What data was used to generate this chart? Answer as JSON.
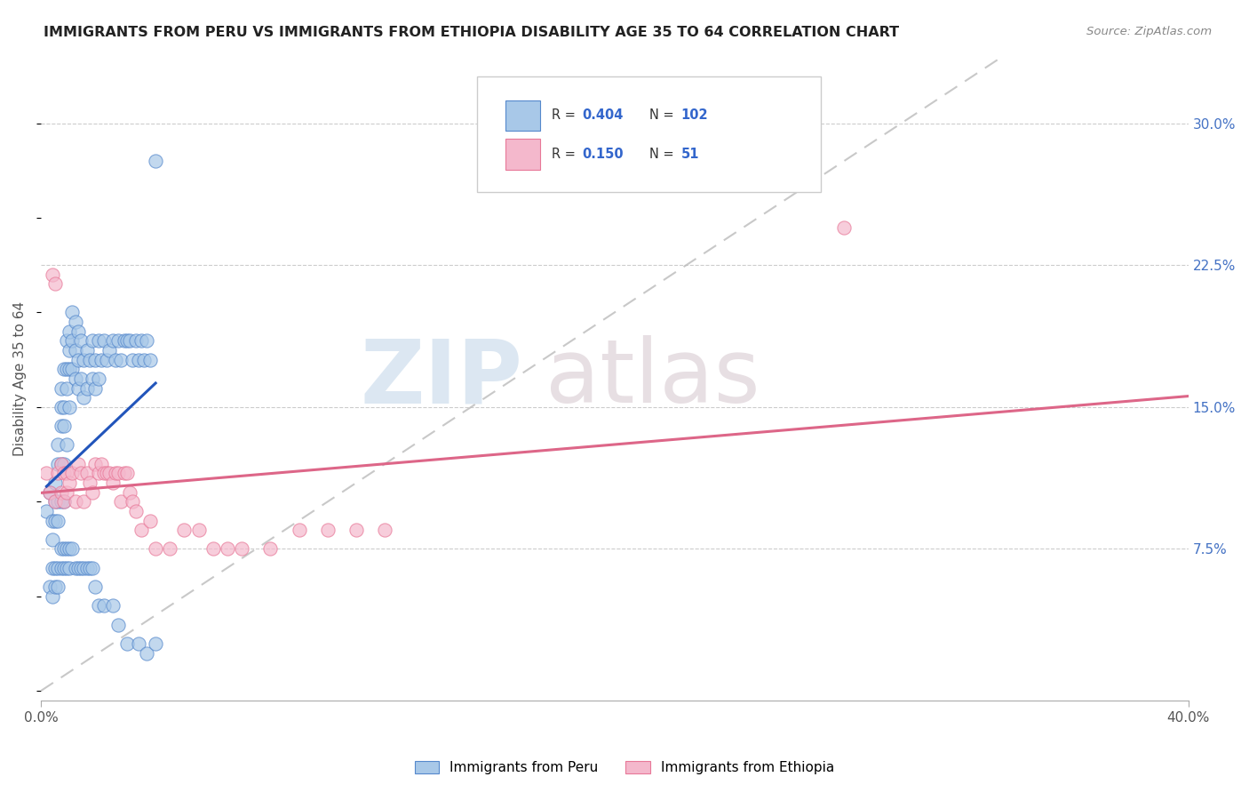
{
  "title": "IMMIGRANTS FROM PERU VS IMMIGRANTS FROM ETHIOPIA DISABILITY AGE 35 TO 64 CORRELATION CHART",
  "source": "Source: ZipAtlas.com",
  "ylabel": "Disability Age 35 to 64",
  "yticks": [
    "7.5%",
    "15.0%",
    "22.5%",
    "30.0%"
  ],
  "ytick_vals": [
    0.075,
    0.15,
    0.225,
    0.3
  ],
  "xlim": [
    0.0,
    0.4
  ],
  "ylim": [
    -0.005,
    0.335
  ],
  "peru_color": "#A8C8E8",
  "ethiopia_color": "#F4B8CC",
  "peru_edge_color": "#5588CC",
  "ethiopia_edge_color": "#E87898",
  "peru_line_color": "#2255BB",
  "ethiopia_line_color": "#DD6688",
  "diagonal_color": "#BBBBBB",
  "watermark_zip": "ZIP",
  "watermark_atlas": "atlas",
  "legend_r1": "0.404",
  "legend_n1": "102",
  "legend_r2": "0.150",
  "legend_n2": "51",
  "peru_scatter_x": [
    0.002,
    0.003,
    0.004,
    0.004,
    0.005,
    0.005,
    0.005,
    0.006,
    0.006,
    0.006,
    0.006,
    0.007,
    0.007,
    0.007,
    0.007,
    0.007,
    0.008,
    0.008,
    0.008,
    0.008,
    0.008,
    0.009,
    0.009,
    0.009,
    0.009,
    0.01,
    0.01,
    0.01,
    0.01,
    0.011,
    0.011,
    0.011,
    0.012,
    0.012,
    0.012,
    0.013,
    0.013,
    0.013,
    0.014,
    0.014,
    0.015,
    0.015,
    0.016,
    0.016,
    0.017,
    0.018,
    0.018,
    0.019,
    0.019,
    0.02,
    0.02,
    0.021,
    0.022,
    0.023,
    0.024,
    0.025,
    0.026,
    0.027,
    0.028,
    0.029,
    0.03,
    0.031,
    0.032,
    0.033,
    0.034,
    0.035,
    0.036,
    0.037,
    0.038,
    0.04,
    0.003,
    0.004,
    0.004,
    0.005,
    0.005,
    0.006,
    0.006,
    0.007,
    0.007,
    0.008,
    0.008,
    0.009,
    0.009,
    0.01,
    0.01,
    0.011,
    0.012,
    0.013,
    0.014,
    0.015,
    0.016,
    0.017,
    0.018,
    0.019,
    0.02,
    0.022,
    0.025,
    0.027,
    0.03,
    0.034,
    0.037,
    0.04
  ],
  "peru_scatter_y": [
    0.095,
    0.105,
    0.09,
    0.08,
    0.11,
    0.1,
    0.09,
    0.13,
    0.12,
    0.1,
    0.09,
    0.16,
    0.15,
    0.14,
    0.12,
    0.1,
    0.17,
    0.15,
    0.14,
    0.12,
    0.1,
    0.185,
    0.17,
    0.16,
    0.13,
    0.19,
    0.18,
    0.17,
    0.15,
    0.2,
    0.185,
    0.17,
    0.195,
    0.18,
    0.165,
    0.19,
    0.175,
    0.16,
    0.185,
    0.165,
    0.175,
    0.155,
    0.18,
    0.16,
    0.175,
    0.185,
    0.165,
    0.175,
    0.16,
    0.185,
    0.165,
    0.175,
    0.185,
    0.175,
    0.18,
    0.185,
    0.175,
    0.185,
    0.175,
    0.185,
    0.185,
    0.185,
    0.175,
    0.185,
    0.175,
    0.185,
    0.175,
    0.185,
    0.175,
    0.28,
    0.055,
    0.065,
    0.05,
    0.065,
    0.055,
    0.065,
    0.055,
    0.075,
    0.065,
    0.075,
    0.065,
    0.075,
    0.065,
    0.075,
    0.065,
    0.075,
    0.065,
    0.065,
    0.065,
    0.065,
    0.065,
    0.065,
    0.065,
    0.055,
    0.045,
    0.045,
    0.045,
    0.035,
    0.025,
    0.025,
    0.02,
    0.025
  ],
  "ethiopia_scatter_x": [
    0.002,
    0.003,
    0.004,
    0.005,
    0.005,
    0.006,
    0.007,
    0.007,
    0.008,
    0.008,
    0.009,
    0.009,
    0.01,
    0.011,
    0.012,
    0.013,
    0.014,
    0.015,
    0.016,
    0.017,
    0.018,
    0.019,
    0.02,
    0.021,
    0.022,
    0.023,
    0.024,
    0.025,
    0.026,
    0.027,
    0.028,
    0.029,
    0.03,
    0.031,
    0.032,
    0.033,
    0.035,
    0.038,
    0.04,
    0.045,
    0.05,
    0.055,
    0.06,
    0.065,
    0.07,
    0.08,
    0.09,
    0.1,
    0.11,
    0.12,
    0.28
  ],
  "ethiopia_scatter_y": [
    0.115,
    0.105,
    0.22,
    0.215,
    0.1,
    0.115,
    0.12,
    0.105,
    0.115,
    0.1,
    0.115,
    0.105,
    0.11,
    0.115,
    0.1,
    0.12,
    0.115,
    0.1,
    0.115,
    0.11,
    0.105,
    0.12,
    0.115,
    0.12,
    0.115,
    0.115,
    0.115,
    0.11,
    0.115,
    0.115,
    0.1,
    0.115,
    0.115,
    0.105,
    0.1,
    0.095,
    0.085,
    0.09,
    0.075,
    0.075,
    0.085,
    0.085,
    0.075,
    0.075,
    0.075,
    0.075,
    0.085,
    0.085,
    0.085,
    0.085,
    0.245
  ]
}
